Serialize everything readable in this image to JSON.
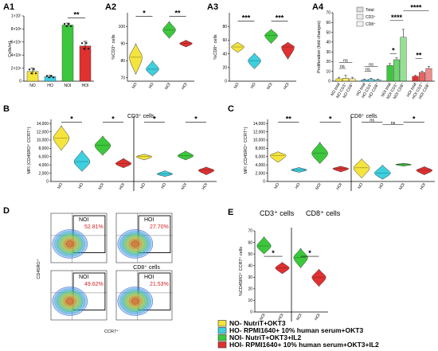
{
  "colors": {
    "NO": "#f5e43c",
    "HO": "#3dd0e0",
    "NOI": "#3cc83c",
    "HOI": "#e03030"
  },
  "legend": [
    {
      "key": "NO",
      "label": "NO- NutriT+OKT3"
    },
    {
      "key": "HO",
      "label": "HO- RPMI1640+ 10% human serum+OKT3"
    },
    {
      "key": "NOI",
      "label": "NOI- NutriT+OKT3+IL2"
    },
    {
      "key": "HOI",
      "label": "HOI- RPMI1640+ 10% human serum+OKT3+IL2"
    }
  ],
  "chart_data": [
    {
      "id": "A1",
      "type": "bar",
      "panel_label": "A1",
      "ylabel": "Cells/mL",
      "yticks": [
        "0",
        "2×10⁶",
        "4×10⁶",
        "6×10⁶",
        "8×10⁶",
        "1×10⁷"
      ],
      "ylim": [
        0,
        10000000
      ],
      "categories": [
        "NO",
        "HO",
        "NOI",
        "HOI"
      ],
      "values": [
        1500000,
        700000,
        8600000,
        5400000
      ],
      "errors": [
        500000,
        200000,
        300000,
        700000
      ],
      "significance": [
        {
          "from": 2,
          "to": 3,
          "label": "**"
        }
      ]
    },
    {
      "id": "A2",
      "type": "violin",
      "panel_label": "A2",
      "ylabel": "%CD3⁺ cells",
      "yticks": [
        "70",
        "80",
        "90",
        "100"
      ],
      "ytick_values": [
        70,
        80,
        90,
        100
      ],
      "ylim": [
        68,
        108
      ],
      "categories": [
        "NO",
        "HO",
        "NOI",
        "HOI"
      ],
      "medians": [
        82,
        75,
        98,
        90
      ],
      "mins": [
        72,
        71,
        93,
        88
      ],
      "maxs": [
        90,
        80,
        103,
        92
      ],
      "significance": [
        {
          "from": 0,
          "to": 1,
          "label": "*"
        },
        {
          "from": 2,
          "to": 3,
          "label": "**"
        }
      ]
    },
    {
      "id": "A3",
      "type": "violin",
      "panel_label": "A3",
      "ylabel": "%CD8⁺ cells",
      "yticks": [
        "0",
        "20",
        "40",
        "60",
        "80"
      ],
      "ytick_values": [
        0,
        20,
        40,
        60,
        80
      ],
      "ylim": [
        0,
        100
      ],
      "categories": [
        "NO",
        "HO",
        "NOI",
        "HOI"
      ],
      "medians": [
        50,
        30,
        67,
        50
      ],
      "mins": [
        42,
        18,
        55,
        32
      ],
      "maxs": [
        57,
        41,
        76,
        57
      ],
      "significance": [
        {
          "from": 0,
          "to": 1,
          "label": "***"
        },
        {
          "from": 2,
          "to": 3,
          "label": "***"
        }
      ]
    },
    {
      "id": "A4",
      "type": "bar",
      "panel_label": "A4",
      "ylabel": "Proliferation (fold changes)",
      "yticks": [
        "0",
        "10",
        "20",
        "30",
        "40",
        "50",
        "60",
        "70"
      ],
      "ylim": [
        0,
        70
      ],
      "legend_entries": [
        "Total",
        "CD3⁺",
        "CD8⁺"
      ],
      "categories": [
        "NO total",
        "NO CD3⁺",
        "NO CD8⁺",
        "HO total",
        "HO CD3⁺",
        "HO CD8⁺",
        "NOI total",
        "NOI CD3⁺",
        "NOI CD8⁺",
        "HOI total",
        "HOI CD3⁺",
        "HOI CD8⁺"
      ],
      "values": [
        2.5,
        3,
        2.5,
        1.5,
        2,
        1.5,
        16,
        22,
        45,
        5,
        9,
        13
      ],
      "errors": [
        1.5,
        3,
        1.5,
        0.5,
        1,
        0.5,
        2,
        2,
        8,
        1,
        1,
        2
      ],
      "significance": [
        {
          "from": 0,
          "to": 1,
          "label": "ns"
        },
        {
          "from": 0,
          "to": 2,
          "label": "ns"
        },
        {
          "from": 3,
          "to": 4,
          "label": "ns"
        },
        {
          "from": 3,
          "to": 5,
          "label": "ns"
        },
        {
          "from": 6,
          "to": 7,
          "label": "*"
        },
        {
          "from": 6,
          "to": 8,
          "label": "****"
        },
        {
          "from": 9,
          "to": 10,
          "label": "**"
        },
        {
          "from": 8,
          "to": 11,
          "label": "****"
        }
      ]
    },
    {
      "id": "B",
      "type": "violin",
      "panel_label": "B",
      "title": "CD3⁺ cells",
      "ylabel": "MFI (CD45RO⁺ CCR7⁺)",
      "yticks": [
        "0",
        "2,000",
        "4,000",
        "6,000",
        "8,000",
        "10,000",
        "12,000",
        "14,000"
      ],
      "ytick_values": [
        0,
        2000,
        4000,
        6000,
        8000,
        10000,
        12000,
        14000
      ],
      "ylim": [
        0,
        15000
      ],
      "categories": [
        "NO",
        "HO",
        "NOI",
        "HOI",
        "NO",
        "HO",
        "NOI",
        "HOI"
      ],
      "medians": [
        10500,
        4800,
        8700,
        4300,
        6000,
        1800,
        6200,
        2700
      ],
      "mins": [
        7500,
        2400,
        6300,
        3300,
        5200,
        1200,
        5200,
        1600
      ],
      "maxs": [
        13500,
        7500,
        11000,
        5600,
        6600,
        2600,
        7400,
        3500
      ],
      "significance": [
        {
          "from": 0,
          "to": 1,
          "label": "*"
        },
        {
          "from": 2,
          "to": 3,
          "label": "*"
        },
        {
          "from": 4,
          "to": 5,
          "label": "*"
        },
        {
          "from": 6,
          "to": 7,
          "label": "*"
        }
      ]
    },
    {
      "id": "C",
      "type": "violin",
      "panel_label": "C",
      "title": "CD8⁺ cells",
      "ylabel": "MFI (CD45RO⁺ CCR7⁺)",
      "yticks": [
        "0",
        "2,000",
        "4,000",
        "6,000",
        "8,000",
        "10,000",
        "12,000",
        "14,000"
      ],
      "ytick_values": [
        0,
        2000,
        4000,
        6000,
        8000,
        10000,
        12000,
        14000
      ],
      "ylim": [
        0,
        15000
      ],
      "categories": [
        "NO",
        "HO",
        "NOI",
        "HOI",
        "NO",
        "HO",
        "NOI",
        "HOI"
      ],
      "medians": [
        6300,
        2800,
        6800,
        3100,
        3300,
        2000,
        4100,
        2700
      ],
      "mins": [
        4600,
        2200,
        4300,
        2300,
        800,
        500,
        3700,
        1600
      ],
      "maxs": [
        7200,
        3400,
        9500,
        3700,
        5500,
        4000,
        4400,
        3600
      ],
      "significance": [
        {
          "from": 0,
          "to": 1,
          "label": "**"
        },
        {
          "from": 2,
          "to": 3,
          "label": "*"
        },
        {
          "from": 4,
          "to": 5,
          "label": "ns"
        },
        {
          "from": 5,
          "to": 6,
          "label": "ns"
        },
        {
          "from": 6,
          "to": 7,
          "label": "*"
        }
      ]
    },
    {
      "id": "E",
      "type": "violin",
      "panel_label": "E",
      "titles": [
        "CD3⁺ cells",
        "CD8⁺ cells"
      ],
      "ylabel": "%CD45RO⁺ CCR7⁺ cells",
      "yticks": [
        "0",
        "10",
        "20",
        "30",
        "40",
        "50",
        "60",
        "70"
      ],
      "ytick_values": [
        0,
        10,
        20,
        30,
        40,
        50,
        60,
        70
      ],
      "ylim": [
        0,
        70
      ],
      "categories": [
        "NOI",
        "HOI",
        "NOI",
        "HOI"
      ],
      "color_keys": [
        "NOI",
        "HOI",
        "NOI",
        "HOI"
      ],
      "medians": [
        57,
        38,
        47,
        30
      ],
      "mins": [
        50,
        33,
        38,
        22
      ],
      "maxs": [
        65,
        43,
        55,
        37
      ],
      "significance": [
        {
          "from": 0,
          "to": 1,
          "label": "*"
        },
        {
          "from": 2,
          "to": 3,
          "label": "*"
        }
      ]
    }
  ],
  "flow_D": {
    "panel_label": "D",
    "section_label": "CD8⁺ cells",
    "ylabel": "CD45RO⁺",
    "xlabel": "CCR7⁺",
    "plots": [
      {
        "label": "NOI",
        "percent": "52.81%"
      },
      {
        "label": "HOI",
        "percent": "27.70%"
      },
      {
        "label": "NOI",
        "percent": "49.62%"
      },
      {
        "label": "HOI",
        "percent": "21.53%"
      }
    ]
  }
}
